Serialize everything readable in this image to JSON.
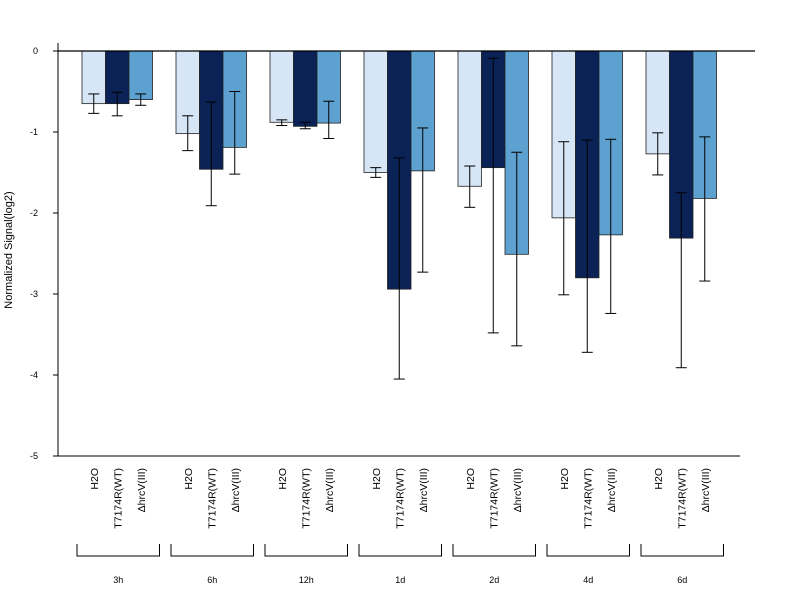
{
  "chart_data": {
    "type": "bar",
    "ylabel": "Normalized Signal(log2)",
    "ylim": [
      -5,
      0
    ],
    "yticks": [
      0,
      -1,
      -2,
      -3,
      -4,
      -5
    ],
    "ytick_labels": [
      "0",
      "-1",
      "-2",
      "-3",
      "-4",
      "-5"
    ],
    "groups": [
      "3h",
      "6h",
      "12h",
      "1d",
      "2d",
      "4d",
      "6d"
    ],
    "series": [
      {
        "name": "H2O",
        "color": "#d6e6f7",
        "values": [
          -0.65,
          -1.02,
          -0.88,
          -1.5,
          -1.67,
          -2.06,
          -1.27
        ],
        "err_low": [
          -0.77,
          -1.23,
          -0.92,
          -1.56,
          -1.93,
          -3.01,
          -1.53
        ],
        "err_high": [
          -0.53,
          -0.8,
          -0.85,
          -1.44,
          -1.42,
          -1.12,
          -1.01
        ]
      },
      {
        "name": "T7174R(WT)",
        "color": "#0b2257",
        "values": [
          -0.65,
          -1.46,
          -0.93,
          -2.94,
          -1.44,
          -2.8,
          -2.31
        ],
        "err_low": [
          -0.8,
          -1.91,
          -0.96,
          -4.05,
          -3.48,
          -3.72,
          -3.91
        ],
        "err_high": [
          -0.51,
          -0.63,
          -0.88,
          -1.32,
          -0.09,
          -1.1,
          -1.75
        ]
      },
      {
        "name": "ΔhrcV(III)",
        "color": "#5ca1d0",
        "values": [
          -0.6,
          -1.19,
          -0.89,
          -1.48,
          -2.51,
          -2.27,
          -1.82
        ],
        "err_low": [
          -0.67,
          -1.52,
          -1.08,
          -2.73,
          -3.64,
          -3.24,
          -2.84
        ],
        "err_high": [
          -0.53,
          -0.5,
          -0.62,
          -0.95,
          -1.25,
          -1.09,
          -1.06
        ]
      }
    ]
  }
}
